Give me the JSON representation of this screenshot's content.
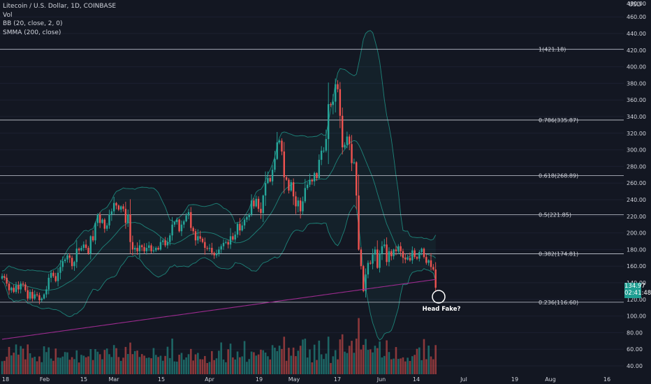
{
  "legend": {
    "symbol": "Litecoin / U.S. Dollar, 1D, COINBASE",
    "vol": "Vol",
    "bb": "BB (20, close, 2, 0)",
    "smma": "SMMA (200, close)"
  },
  "price_axis": {
    "unit": "USD",
    "last_price": "134.97",
    "countdown": "02:41:48"
  },
  "annotation": "Head Fake?",
  "colors": {
    "background": "#131722",
    "up": "#26a69a",
    "down": "#ef5350",
    "bb": "#1f8f83",
    "smma": "#9c2b8f",
    "fib": "#c8ccd6",
    "text": "#d1d4dc"
  },
  "chart_data": {
    "type": "candlestick",
    "ylim": [
      35,
      480
    ],
    "yticks": [
      40,
      60,
      80,
      100,
      120,
      140,
      160,
      180,
      200,
      220,
      240,
      260,
      280,
      300,
      320,
      340,
      360,
      380,
      400,
      420,
      440,
      460
    ],
    "ytick_labels": [
      "40.00",
      "60.00",
      "80.00",
      "100.00",
      "120.00",
      "140.00",
      "160.00",
      "180.00",
      "200.00",
      "220.00",
      "240.00",
      "260.00",
      "280.00",
      "300.00",
      "320.00",
      "340.00",
      "360.00",
      "380.00",
      "400.00",
      "420.00",
      "440.00",
      "460.00"
    ],
    "top_partial_label": "480.00",
    "xticks": [
      "18",
      "Feb",
      "15",
      "Mar",
      "15",
      "Apr",
      "19",
      "May",
      "17",
      "Jun",
      "14",
      "Jul",
      "19",
      "Aug",
      "16"
    ],
    "fib_levels": [
      {
        "label": "1(421.18)",
        "value": 421.18
      },
      {
        "label": "0.786(335.87)",
        "value": 335.87
      },
      {
        "label": "0.618(268.89)",
        "value": 268.89
      },
      {
        "label": "0.5(221.85)",
        "value": 221.85
      },
      {
        "label": "0.382(174.81)",
        "value": 174.81
      },
      {
        "label": "0.236(116.60)",
        "value": 116.6
      }
    ],
    "closes": [
      148,
      146,
      139,
      131,
      134,
      129,
      137,
      132,
      139,
      138,
      131,
      121,
      129,
      121,
      126,
      125,
      119,
      121,
      126,
      132,
      146,
      152,
      148,
      142,
      152,
      159,
      166,
      168,
      173,
      170,
      160,
      165,
      181,
      179,
      182,
      186,
      182,
      175,
      196,
      191,
      212,
      222,
      212,
      216,
      205,
      209,
      222,
      226,
      236,
      233,
      228,
      232,
      229,
      212,
      222,
      189,
      180,
      182,
      178,
      185,
      183,
      178,
      182,
      185,
      178,
      179,
      182,
      180,
      189,
      191,
      185,
      189,
      197,
      210,
      213,
      216,
      202,
      210,
      214,
      221,
      225,
      206,
      202,
      191,
      196,
      193,
      189,
      182,
      181,
      182,
      176,
      173,
      175,
      180,
      184,
      188,
      189,
      186,
      196,
      192,
      198,
      211,
      203,
      209,
      216,
      219,
      222,
      239,
      232,
      241,
      229,
      224,
      245,
      260,
      266,
      262,
      276,
      289,
      309,
      311,
      298,
      267,
      264,
      251,
      261,
      244,
      232,
      239,
      226,
      238,
      254,
      258,
      264,
      262,
      272,
      266,
      288,
      299,
      299,
      313,
      355,
      354,
      358,
      379,
      373,
      341,
      303,
      306,
      316,
      307,
      284,
      285,
      245,
      180,
      160,
      130,
      150,
      164,
      163,
      174,
      180,
      158,
      175,
      184,
      186,
      165,
      178,
      172,
      180,
      178,
      184,
      178,
      170,
      168,
      170,
      167,
      179,
      171,
      169,
      177,
      181,
      171,
      164,
      167,
      159,
      156,
      134
    ]
  }
}
